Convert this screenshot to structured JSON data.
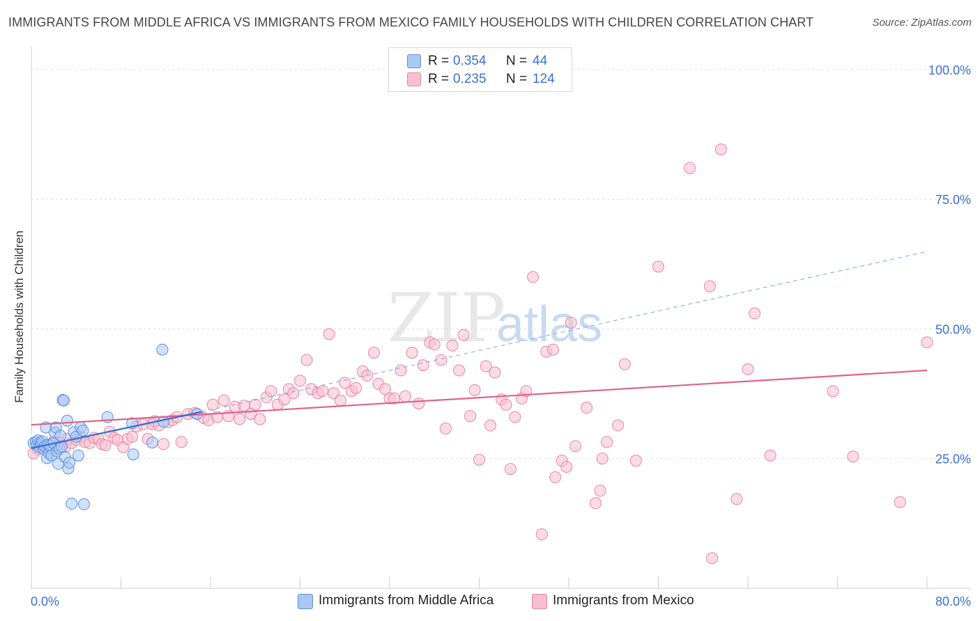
{
  "title": "IMMIGRANTS FROM MIDDLE AFRICA VS IMMIGRANTS FROM MEXICO FAMILY HOUSEHOLDS WITH CHILDREN CORRELATION CHART",
  "source": "Source: ZipAtlas.com",
  "watermark": {
    "zip": "ZIP",
    "atlas": "atlas"
  },
  "legend": {
    "r_label": "R =",
    "n_label": "N =",
    "rows": [
      {
        "r": "0.354",
        "n": "44"
      },
      {
        "r": "0.235",
        "n": "124"
      }
    ]
  },
  "colors": {
    "blue_fill": "#aac8f4",
    "blue_stroke": "#5b8fe0",
    "blue_line": "#2f6fd6",
    "pink_fill": "#f7bfd0",
    "pink_stroke": "#e784a4",
    "pink_line": "#e0628b",
    "axis_text": "#3a6fd8",
    "grid": "#dddddd"
  },
  "chart_data": {
    "type": "scatter",
    "title": "IMMIGRANTS FROM MIDDLE AFRICA VS IMMIGRANTS FROM MEXICO FAMILY HOUSEHOLDS WITH CHILDREN CORRELATION CHART",
    "xlabel": "",
    "ylabel": "Family Households with Children",
    "xlim": [
      0,
      80
    ],
    "ylim": [
      0,
      104
    ],
    "x_tick_labels": [
      {
        "value": 0,
        "label": "0.0%"
      },
      {
        "value": 80,
        "label": "80.0%"
      }
    ],
    "y_tick_labels": [
      {
        "value": 25,
        "label": "25.0%"
      },
      {
        "value": 50,
        "label": "50.0%"
      },
      {
        "value": 75,
        "label": "75.0%"
      },
      {
        "value": 100,
        "label": "100.0%"
      }
    ],
    "grid_y": [
      25,
      50,
      75,
      100
    ],
    "series": [
      {
        "name": "Immigrants from Middle Africa",
        "r": 0.354,
        "n": 44,
        "trend": {
          "x": [
            0,
            15.2
          ],
          "y": [
            27.0,
            34.0
          ],
          "dashed_to": [
            80,
            64.9
          ]
        },
        "points": [
          [
            0.2,
            28
          ],
          [
            0.4,
            28.2
          ],
          [
            0.5,
            27.6
          ],
          [
            0.6,
            28.5
          ],
          [
            0.7,
            27.2
          ],
          [
            0.8,
            28.1
          ],
          [
            0.9,
            27.8
          ],
          [
            1.0,
            28.3
          ],
          [
            1.1,
            26.8
          ],
          [
            1.2,
            27.4
          ],
          [
            1.3,
            31.0
          ],
          [
            1.4,
            25.1
          ],
          [
            1.5,
            27.7
          ],
          [
            1.6,
            26.0
          ],
          [
            1.7,
            27.5
          ],
          [
            1.8,
            25.6
          ],
          [
            2.0,
            28.0
          ],
          [
            2.1,
            30.0
          ],
          [
            2.2,
            31.0
          ],
          [
            2.3,
            26.4
          ],
          [
            2.4,
            24.0
          ],
          [
            2.5,
            26.9
          ],
          [
            2.6,
            29.4
          ],
          [
            2.7,
            27.3
          ],
          [
            2.8,
            36.3
          ],
          [
            2.9,
            36.2
          ],
          [
            3.0,
            25.3
          ],
          [
            3.2,
            32.3
          ],
          [
            3.3,
            23.1
          ],
          [
            3.4,
            24.2
          ],
          [
            3.6,
            16.3
          ],
          [
            3.8,
            30.1
          ],
          [
            4.0,
            29.2
          ],
          [
            4.2,
            25.6
          ],
          [
            4.4,
            31.0
          ],
          [
            4.6,
            30.4
          ],
          [
            4.7,
            16.2
          ],
          [
            6.8,
            33.0
          ],
          [
            9.0,
            31.8
          ],
          [
            9.1,
            25.8
          ],
          [
            10.8,
            28.1
          ],
          [
            11.7,
            46.0
          ],
          [
            11.8,
            32.1
          ],
          [
            14.8,
            33.6
          ]
        ]
      },
      {
        "name": "Immigrants from Mexico",
        "r": 0.235,
        "n": 124,
        "trend": {
          "x": [
            0,
            80
          ],
          "y": [
            31.5,
            42.0
          ]
        },
        "points": [
          [
            0.2,
            26.0
          ],
          [
            0.6,
            26.8
          ],
          [
            1.0,
            27.2
          ],
          [
            1.4,
            27.6
          ],
          [
            1.8,
            26.9
          ],
          [
            2.0,
            28.3
          ],
          [
            2.3,
            27.0
          ],
          [
            2.6,
            28.0
          ],
          [
            3.0,
            27.2
          ],
          [
            3.2,
            28.8
          ],
          [
            3.6,
            28.0
          ],
          [
            4.0,
            28.6
          ],
          [
            4.4,
            29.2
          ],
          [
            4.8,
            28.2
          ],
          [
            5.2,
            28.0
          ],
          [
            5.6,
            29.0
          ],
          [
            6.0,
            28.8
          ],
          [
            6.3,
            27.8
          ],
          [
            6.6,
            27.6
          ],
          [
            7.0,
            30.2
          ],
          [
            7.4,
            29.0
          ],
          [
            7.7,
            28.6
          ],
          [
            8.2,
            27.2
          ],
          [
            8.6,
            28.8
          ],
          [
            9.0,
            29.2
          ],
          [
            9.4,
            31.2
          ],
          [
            10.0,
            31.6
          ],
          [
            10.4,
            28.8
          ],
          [
            10.8,
            31.6
          ],
          [
            11.0,
            32.2
          ],
          [
            11.4,
            31.4
          ],
          [
            11.8,
            27.8
          ],
          [
            12.2,
            32.0
          ],
          [
            12.6,
            32.4
          ],
          [
            13.0,
            33.0
          ],
          [
            13.4,
            28.2
          ],
          [
            14.0,
            33.6
          ],
          [
            14.6,
            33.8
          ],
          [
            15.4,
            32.8
          ],
          [
            15.8,
            32.4
          ],
          [
            16.2,
            35.4
          ],
          [
            16.6,
            33.0
          ],
          [
            17.2,
            36.2
          ],
          [
            17.6,
            33.2
          ],
          [
            18.2,
            35.0
          ],
          [
            18.6,
            32.6
          ],
          [
            19.0,
            35.2
          ],
          [
            19.6,
            33.6
          ],
          [
            20.0,
            35.4
          ],
          [
            20.4,
            32.6
          ],
          [
            21.0,
            36.8
          ],
          [
            21.4,
            38.0
          ],
          [
            22.0,
            35.4
          ],
          [
            22.6,
            36.4
          ],
          [
            23.0,
            38.4
          ],
          [
            23.4,
            37.6
          ],
          [
            24.0,
            40.0
          ],
          [
            24.6,
            44.0
          ],
          [
            25.0,
            38.4
          ],
          [
            25.6,
            37.6
          ],
          [
            26.0,
            38.0
          ],
          [
            26.6,
            49.0
          ],
          [
            27.0,
            37.6
          ],
          [
            27.6,
            36.2
          ],
          [
            28.0,
            39.6
          ],
          [
            28.6,
            38.0
          ],
          [
            29.0,
            38.6
          ],
          [
            29.6,
            41.8
          ],
          [
            30.0,
            41.0
          ],
          [
            30.6,
            45.4
          ],
          [
            31.0,
            39.4
          ],
          [
            31.6,
            38.4
          ],
          [
            32.0,
            36.6
          ],
          [
            32.4,
            36.6
          ],
          [
            33.0,
            42.0
          ],
          [
            33.4,
            37.0
          ],
          [
            34.0,
            45.4
          ],
          [
            34.6,
            35.6
          ],
          [
            35.0,
            43.0
          ],
          [
            35.6,
            47.4
          ],
          [
            36.0,
            47.0
          ],
          [
            36.6,
            44.0
          ],
          [
            37.0,
            30.8
          ],
          [
            37.6,
            46.8
          ],
          [
            38.2,
            42.0
          ],
          [
            38.6,
            48.8
          ],
          [
            39.2,
            33.2
          ],
          [
            39.6,
            38.2
          ],
          [
            40.0,
            24.8
          ],
          [
            40.6,
            42.8
          ],
          [
            41.0,
            31.4
          ],
          [
            41.4,
            41.6
          ],
          [
            42.0,
            36.4
          ],
          [
            42.4,
            35.4
          ],
          [
            42.8,
            23.0
          ],
          [
            43.2,
            33.0
          ],
          [
            43.8,
            36.6
          ],
          [
            44.2,
            38.0
          ],
          [
            44.8,
            60.0
          ],
          [
            45.6,
            10.4
          ],
          [
            46.0,
            45.6
          ],
          [
            46.6,
            46.0
          ],
          [
            46.8,
            21.4
          ],
          [
            47.4,
            24.6
          ],
          [
            47.8,
            23.4
          ],
          [
            48.2,
            51.2
          ],
          [
            48.6,
            27.4
          ],
          [
            49.6,
            34.8
          ],
          [
            50.4,
            16.4
          ],
          [
            50.8,
            18.8
          ],
          [
            51.0,
            25.0
          ],
          [
            51.4,
            28.2
          ],
          [
            52.4,
            31.4
          ],
          [
            53.0,
            43.2
          ],
          [
            54.0,
            24.6
          ],
          [
            56.0,
            62.0
          ],
          [
            58.8,
            81.0
          ],
          [
            60.6,
            58.2
          ],
          [
            60.8,
            5.8
          ],
          [
            61.6,
            84.6
          ],
          [
            63.0,
            17.2
          ],
          [
            64.0,
            42.2
          ],
          [
            64.6,
            53.0
          ],
          [
            66.0,
            25.6
          ],
          [
            71.6,
            38.0
          ],
          [
            73.4,
            25.4
          ],
          [
            77.6,
            16.6
          ],
          [
            80.0,
            47.4
          ]
        ]
      }
    ]
  }
}
